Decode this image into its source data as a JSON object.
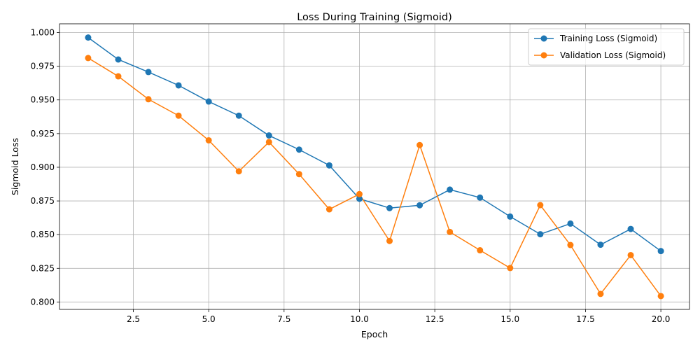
{
  "chart_data": {
    "type": "line",
    "title": "Loss During Training (Sigmoid)",
    "xlabel": "Epoch",
    "ylabel": "Sigmoid Loss",
    "xlim": [
      0.05,
      20.95
    ],
    "ylim": [
      0.7945,
      1.0065
    ],
    "xticks": [
      2.5,
      5.0,
      7.5,
      10.0,
      12.5,
      15.0,
      17.5,
      20.0
    ],
    "xtick_labels": [
      "2.5",
      "5.0",
      "7.5",
      "10.0",
      "12.5",
      "15.0",
      "17.5",
      "20.0"
    ],
    "yticks": [
      0.8,
      0.825,
      0.85,
      0.875,
      0.9,
      0.925,
      0.95,
      0.975,
      1.0
    ],
    "ytick_labels": [
      "0.800",
      "0.825",
      "0.850",
      "0.875",
      "0.900",
      "0.925",
      "0.950",
      "0.975",
      "1.000"
    ],
    "grid": true,
    "legend_position": "top-right",
    "x": [
      1,
      2,
      3,
      4,
      5,
      6,
      7,
      8,
      9,
      10,
      11,
      12,
      13,
      14,
      15,
      16,
      17,
      18,
      19,
      20
    ],
    "series": [
      {
        "name": "Training Loss (Sigmoid)",
        "color": "#1f77b4",
        "values": [
          0.9963,
          0.98,
          0.9707,
          0.9608,
          0.9488,
          0.9383,
          0.9236,
          0.9131,
          0.9014,
          0.8766,
          0.8697,
          0.8718,
          0.8834,
          0.8775,
          0.8634,
          0.8503,
          0.8582,
          0.8425,
          0.8542,
          0.8378
        ]
      },
      {
        "name": "Validation Loss (Sigmoid)",
        "color": "#ff7f0e",
        "values": [
          0.9811,
          0.9675,
          0.9505,
          0.9383,
          0.92,
          0.897,
          0.9187,
          0.8949,
          0.8688,
          0.8801,
          0.8453,
          0.9165,
          0.852,
          0.8384,
          0.8252,
          0.8719,
          0.8423,
          0.806,
          0.8348,
          0.8044
        ]
      }
    ]
  }
}
